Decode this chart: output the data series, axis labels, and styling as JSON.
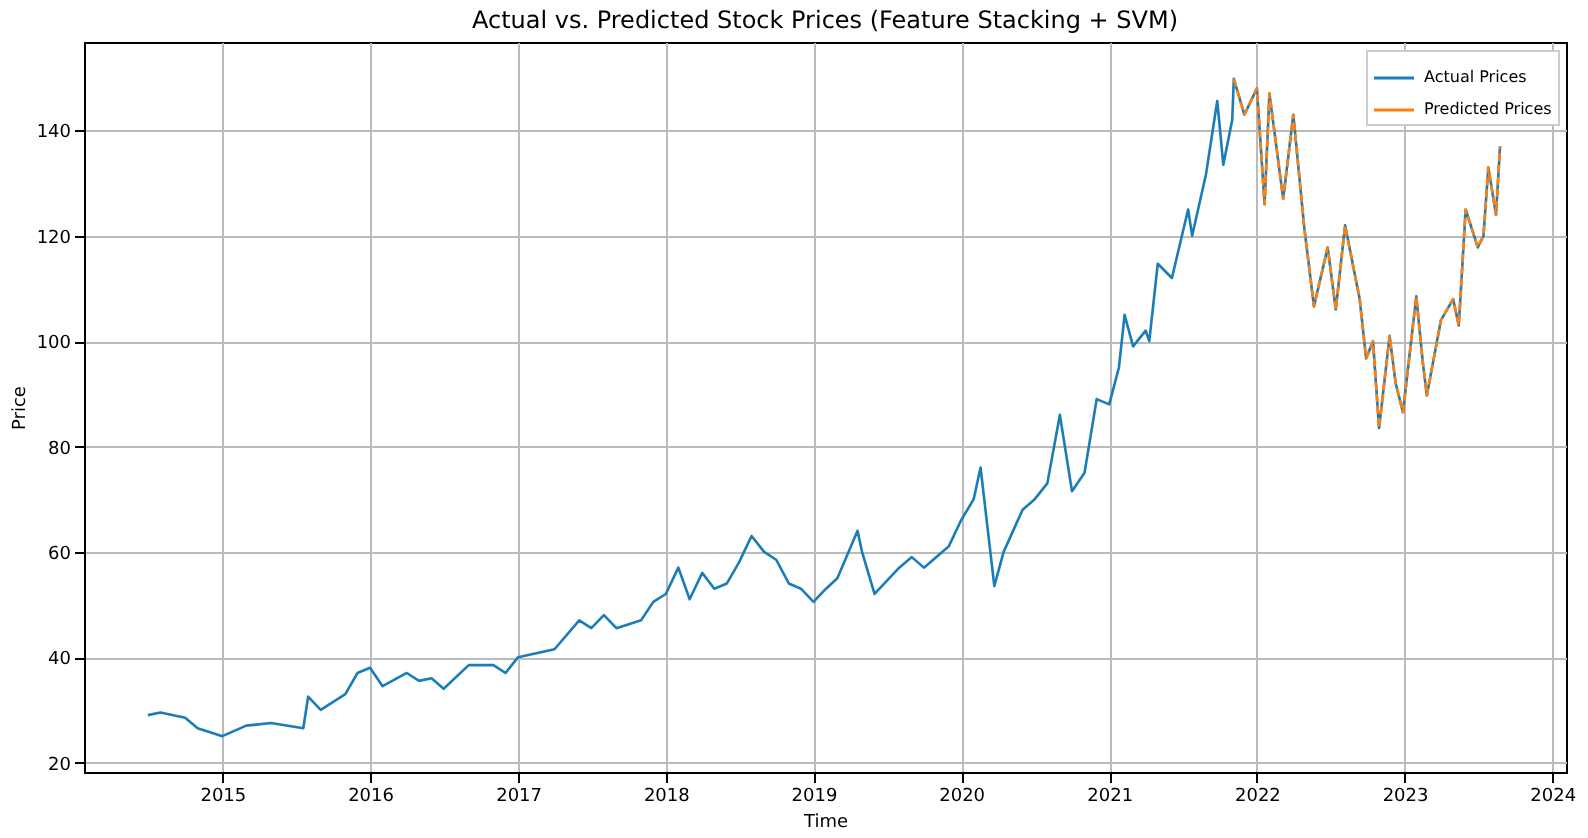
{
  "chart_data": {
    "type": "line",
    "title": "Actual vs. Predicted Stock Prices (Feature Stacking + SVM)",
    "xlabel": "Time",
    "ylabel": "Price",
    "xlim": [
      "2014-01-24",
      "2024-02-04"
    ],
    "xticks": [
      {
        "value": "2015",
        "label": "2015"
      },
      {
        "value": "2016",
        "label": "2016"
      },
      {
        "value": "2017",
        "label": "2017"
      },
      {
        "value": "2018",
        "label": "2018"
      },
      {
        "value": "2019",
        "label": "2019"
      },
      {
        "value": "2020",
        "label": "2020"
      },
      {
        "value": "2021",
        "label": "2021"
      },
      {
        "value": "2022",
        "label": "2022"
      },
      {
        "value": "2023",
        "label": "2023"
      },
      {
        "value": "2024",
        "label": "2024"
      }
    ],
    "ylim": [
      18.2,
      156.8
    ],
    "yticks": [
      20,
      40,
      60,
      80,
      100,
      120,
      140
    ],
    "grid": true,
    "legend": "top right",
    "series": [
      {
        "name": "Actual Prices",
        "color": "#1a7db5",
        "line_style": "solid",
        "x": [
          "2014-07-01",
          "2014-08-01",
          "2014-10-01",
          "2014-11-01",
          "2015-01-01",
          "2015-03-01",
          "2015-05-01",
          "2015-07-20",
          "2015-08-01",
          "2015-09-01",
          "2015-11-01",
          "2015-12-01",
          "2016-01-01",
          "2016-02-01",
          "2016-04-01",
          "2016-05-01",
          "2016-06-01",
          "2016-07-01",
          "2016-09-01",
          "2016-11-01",
          "2016-12-01",
          "2017-01-01",
          "2017-03-01",
          "2017-04-01",
          "2017-06-01",
          "2017-07-01",
          "2017-08-01",
          "2017-09-01",
          "2017-11-01",
          "2017-12-01",
          "2018-01-01",
          "2018-02-01",
          "2018-03-01",
          "2018-04-01",
          "2018-05-01",
          "2018-06-01",
          "2018-07-01",
          "2018-08-01",
          "2018-09-01",
          "2018-10-01",
          "2018-11-01",
          "2018-12-01",
          "2019-01-01",
          "2019-02-01",
          "2019-03-01",
          "2019-04-20",
          "2019-05-01",
          "2019-06-01",
          "2019-08-01",
          "2019-09-01",
          "2019-10-01",
          "2019-12-01",
          "2020-01-01",
          "2020-02-01",
          "2020-02-18",
          "2020-03-23",
          "2020-04-15",
          "2020-06-01",
          "2020-07-01",
          "2020-08-01",
          "2020-09-01",
          "2020-10-01",
          "2020-11-01",
          "2020-12-01",
          "2021-01-01",
          "2021-01-25",
          "2021-02-08",
          "2021-03-01",
          "2021-04-01",
          "2021-04-10",
          "2021-05-01",
          "2021-06-05",
          "2021-07-15",
          "2021-07-25",
          "2021-08-28",
          "2021-09-25",
          "2021-10-10",
          "2021-11-01",
          "2021-11-05",
          "2021-12-01",
          "2022-01-01",
          "2022-01-20",
          "2022-02-01",
          "2022-03-07",
          "2022-04-01",
          "2022-04-28",
          "2022-05-22",
          "2022-06-25",
          "2022-07-15",
          "2022-08-07",
          "2022-09-12",
          "2022-09-28",
          "2022-10-15",
          "2022-10-30",
          "2022-11-25",
          "2022-12-10",
          "2022-12-28",
          "2023-01-30",
          "2023-02-15",
          "2023-02-25",
          "2023-04-01",
          "2023-05-01",
          "2023-05-15",
          "2023-06-01",
          "2023-07-01",
          "2023-07-15",
          "2023-07-27",
          "2023-08-15",
          "2023-08-25"
        ],
        "values": [
          29,
          29.5,
          28.5,
          26.5,
          25,
          27,
          27.5,
          26.5,
          32.5,
          30,
          33,
          37,
          38,
          34.5,
          37,
          35.5,
          36,
          34,
          38.5,
          38.5,
          37,
          40,
          41,
          41.5,
          47,
          45.5,
          48,
          45.5,
          47,
          50.5,
          52,
          57,
          51,
          56,
          53,
          54,
          58,
          63,
          60,
          58.5,
          54,
          53,
          50.5,
          53,
          55,
          64,
          60,
          52,
          57,
          59,
          57,
          61,
          66,
          70,
          76,
          53.5,
          60,
          68,
          70,
          73,
          86,
          71.5,
          75,
          89,
          88,
          95,
          105,
          99,
          102,
          100,
          114.7,
          112,
          125,
          120,
          131.6,
          145.6,
          133.5,
          142,
          149.8,
          143,
          148,
          126,
          147,
          127,
          143,
          121.6,
          106.6,
          117.8,
          106,
          122,
          108,
          96.7,
          100,
          83.5,
          101,
          92,
          86.5,
          108.5,
          96,
          89.7,
          104,
          108,
          103,
          125,
          117.8,
          120,
          133,
          124,
          137
        ]
      },
      {
        "name": "Predicted Prices",
        "color": "#ff7f0e",
        "line_style": "dashed",
        "x": [
          "2021-11-05",
          "2021-12-01",
          "2022-01-01",
          "2022-01-20",
          "2022-02-01",
          "2022-03-07",
          "2022-04-01",
          "2022-04-28",
          "2022-05-22",
          "2022-06-25",
          "2022-07-15",
          "2022-08-07",
          "2022-09-12",
          "2022-09-28",
          "2022-10-15",
          "2022-10-30",
          "2022-11-25",
          "2022-12-10",
          "2022-12-28",
          "2023-01-30",
          "2023-02-15",
          "2023-02-25",
          "2023-04-01",
          "2023-05-01",
          "2023-05-15",
          "2023-06-01",
          "2023-07-01",
          "2023-07-15",
          "2023-07-27",
          "2023-08-15",
          "2023-08-25"
        ],
        "values": [
          149.8,
          143,
          148,
          126,
          147,
          127,
          143,
          121.6,
          106.6,
          117.8,
          106,
          122,
          108,
          96.7,
          100,
          83.5,
          101,
          92,
          86.5,
          108.5,
          96,
          89.7,
          104,
          108,
          103,
          125,
          117.8,
          120,
          133,
          124,
          137
        ]
      }
    ]
  }
}
